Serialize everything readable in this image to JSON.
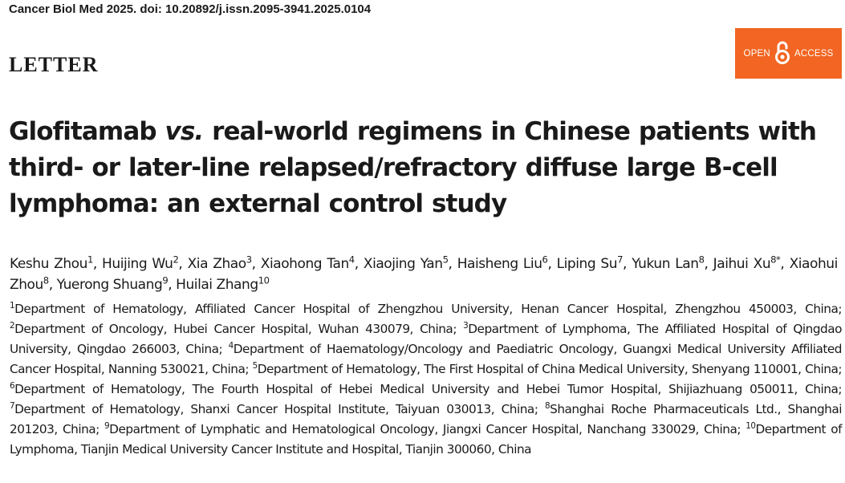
{
  "header": {
    "citation": "Cancer Biol Med 2025. doi: 10.20892/j.issn.2095-3941.2025.0104",
    "article_type": "LETTER",
    "open_access": {
      "left": "OPEN",
      "right": "ACCESS",
      "icon": "open-lock-icon",
      "color": "#f26522"
    }
  },
  "title": {
    "part1": "Glofitamab ",
    "italic": "vs.",
    "part2": " real-world regimens in Chinese patients with third- or later-line relapsed/refractory diffuse large B-cell lymphoma: an external control study"
  },
  "authors": [
    {
      "name": "Keshu Zhou",
      "sup": "1",
      "sep": ", "
    },
    {
      "name": "Huijing Wu",
      "sup": "2",
      "sep": ", "
    },
    {
      "name": "Xia Zhao",
      "sup": "3",
      "sep": ", "
    },
    {
      "name": "Xiaohong Tan",
      "sup": "4",
      "sep": ", "
    },
    {
      "name": "Xiaojing Yan",
      "sup": "5",
      "sep": ", "
    },
    {
      "name": "Haisheng Liu",
      "sup": "6",
      "sep": ", "
    },
    {
      "name": "Liping Su",
      "sup": "7",
      "sep": ", "
    },
    {
      "name": "Yukun Lan",
      "sup": "8",
      "sep": ", "
    },
    {
      "name": "Jaihui Xu",
      "sup": "8*",
      "sep": ", "
    },
    {
      "name": "Xiaohui Zhou",
      "sup": "8",
      "sep": ", "
    },
    {
      "name": "Yuerong Shuang",
      "sup": "9",
      "sep": ", "
    },
    {
      "name": "Huilai Zhang",
      "sup": "10",
      "sep": ""
    }
  ],
  "affiliations": [
    {
      "sup": "1",
      "text": "Department of Hematology, Affiliated Cancer Hospital of Zhengzhou University, Henan Cancer Hospital, Zhengzhou 450003, China",
      "sep": "; "
    },
    {
      "sup": "2",
      "text": "Department of Oncology, Hubei Cancer Hospital, Wuhan 430079, China",
      "sep": "; "
    },
    {
      "sup": "3",
      "text": "Department of Lymphoma, The Affiliated Hospital of Qingdao University, Qingdao 266003, China",
      "sep": "; "
    },
    {
      "sup": "4",
      "text": "Department of Haematology/Oncology and Paediatric Oncology, Guangxi Medical University Affiliated Cancer Hospital, Nanning 530021, China",
      "sep": "; "
    },
    {
      "sup": "5",
      "text": "Department of Hematology, The First Hospital of China Medical University, Shenyang 110001, China",
      "sep": "; "
    },
    {
      "sup": "6",
      "text": "Department of Hematology, The Fourth Hospital of Hebei Medical University and Hebei Tumor Hospital, Shijiazhuang 050011, China",
      "sep": "; "
    },
    {
      "sup": "7",
      "text": "Department of Hematology, Shanxi Cancer Hospital Institute, Taiyuan 030013, China",
      "sep": "; "
    },
    {
      "sup": "8",
      "text": "Shanghai Roche Pharmaceuticals Ltd., Shanghai 201203, China",
      "sep": "; "
    },
    {
      "sup": "9",
      "text": "Department of Lymphatic and Hematological Oncology, Jiangxi Cancer Hospital, Nanchang 330029, China",
      "sep": "; "
    },
    {
      "sup": "10",
      "text": "Department of Lymphoma, Tianjin Medical University Cancer Institute and Hospital, Tianjin 300060, China",
      "sep": ""
    }
  ]
}
